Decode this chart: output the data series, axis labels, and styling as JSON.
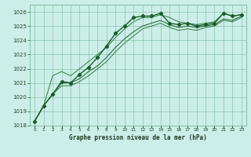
{
  "title": "Graphe pression niveau de la mer (hPa)",
  "background_color": "#cceee8",
  "grid_color": "#66aa88",
  "line_color_main": "#1a5c2a",
  "line_color_range": "#2d7a40",
  "xlim": [
    -0.5,
    23.5
  ],
  "ylim": [
    1018,
    1026.5
  ],
  "yticks": [
    1018,
    1019,
    1020,
    1021,
    1022,
    1023,
    1024,
    1025,
    1026
  ],
  "xticks": [
    0,
    1,
    2,
    3,
    4,
    5,
    6,
    7,
    8,
    9,
    10,
    11,
    12,
    13,
    14,
    15,
    16,
    17,
    18,
    19,
    20,
    21,
    22,
    23
  ],
  "series_main": {
    "x": [
      0,
      1,
      2,
      3,
      4,
      5,
      6,
      7,
      8,
      9,
      10,
      11,
      12,
      13,
      14,
      15,
      16,
      17,
      18,
      19,
      20,
      21,
      22,
      23
    ],
    "y": [
      1018.3,
      1019.4,
      1020.2,
      1021.1,
      1021.0,
      1021.6,
      1022.1,
      1022.8,
      1023.6,
      1024.5,
      1025.0,
      1025.6,
      1025.7,
      1025.7,
      1025.9,
      1025.2,
      1025.1,
      1025.2,
      1025.0,
      1025.1,
      1025.2,
      1025.9,
      1025.7,
      1025.8
    ]
  },
  "series_high": {
    "x": [
      0,
      1,
      2,
      3,
      4,
      5,
      6,
      7,
      8,
      9,
      10,
      11,
      12,
      13,
      14,
      15,
      16,
      17,
      18,
      19,
      20,
      21,
      22,
      23
    ],
    "y": [
      1018.3,
      1019.4,
      1021.5,
      1021.8,
      1021.5,
      1022.0,
      1022.5,
      1023.0,
      1023.5,
      1024.2,
      1024.8,
      1025.3,
      1025.6,
      1025.6,
      1025.8,
      1025.6,
      1025.3,
      1025.2,
      1025.1,
      1025.2,
      1025.3,
      1025.9,
      1025.7,
      1025.8
    ]
  },
  "series_low": {
    "x": [
      0,
      1,
      2,
      3,
      4,
      5,
      6,
      7,
      8,
      9,
      10,
      11,
      12,
      13,
      14,
      15,
      16,
      17,
      18,
      19,
      20,
      21,
      22,
      23
    ],
    "y": [
      1018.3,
      1019.4,
      1020.2,
      1020.8,
      1020.8,
      1021.1,
      1021.5,
      1022.0,
      1022.5,
      1023.2,
      1023.8,
      1024.3,
      1024.8,
      1025.0,
      1025.2,
      1024.9,
      1024.7,
      1024.8,
      1024.7,
      1024.9,
      1025.0,
      1025.4,
      1025.3,
      1025.6
    ]
  },
  "series_avg": {
    "x": [
      0,
      1,
      2,
      3,
      4,
      5,
      6,
      7,
      8,
      9,
      10,
      11,
      12,
      13,
      14,
      15,
      16,
      17,
      18,
      19,
      20,
      21,
      22,
      23
    ],
    "y": [
      1018.3,
      1019.4,
      1020.2,
      1021.0,
      1021.0,
      1021.3,
      1021.8,
      1022.2,
      1022.8,
      1023.5,
      1024.1,
      1024.6,
      1025.0,
      1025.2,
      1025.4,
      1025.1,
      1024.9,
      1025.0,
      1024.9,
      1025.0,
      1025.1,
      1025.5,
      1025.4,
      1025.7
    ]
  }
}
